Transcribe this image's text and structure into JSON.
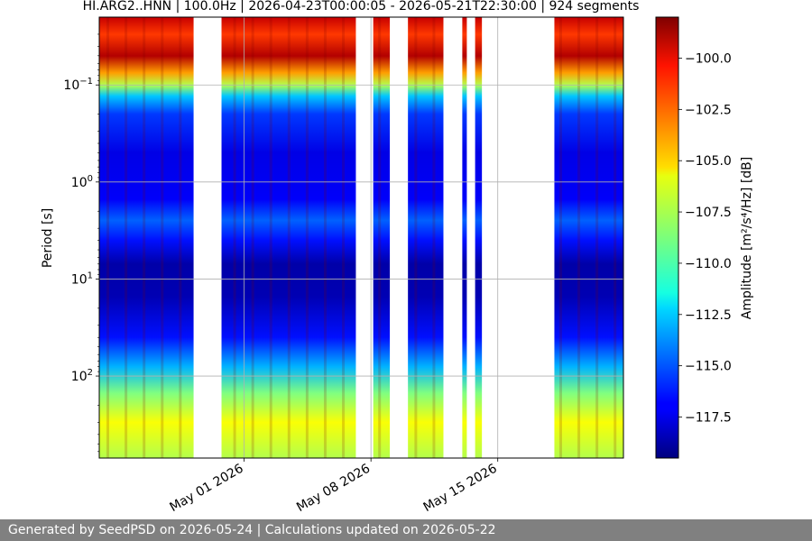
{
  "chart_data": {
    "type": "heatmap",
    "title": "HI.ARG2..HNN | 100.0Hz | 2026-04-23T00:00:05 - 2026-05-21T22:30:00 | 924 segments",
    "ylabel": "Period [s]",
    "y_scale": "log",
    "y_inverted": true,
    "y_range": [
      0.02,
      700
    ],
    "y_ticks": [
      {
        "value": 0.1,
        "base": "10",
        "exp": "−1"
      },
      {
        "value": 1,
        "base": "10",
        "exp": "0"
      },
      {
        "value": 10,
        "base": "10",
        "exp": "1"
      },
      {
        "value": 100,
        "base": "10",
        "exp": "2"
      }
    ],
    "x_range": [
      "2026-04-23T00:00:05",
      "2026-05-21T22:30:00"
    ],
    "x_ticks": [
      {
        "date": "2026-05-01",
        "label": "May 01 2026"
      },
      {
        "date": "2026-05-08",
        "label": "May 08 2026"
      },
      {
        "date": "2026-05-15",
        "label": "May 15 2026"
      }
    ],
    "grid": true,
    "data_gaps": [
      [
        "2026-04-28T05:00:00",
        "2026-04-29T18:00:00"
      ],
      [
        "2026-05-07T04:00:00",
        "2026-05-08T03:00:00"
      ],
      [
        "2026-05-09T01:00:00",
        "2026-05-10T01:00:00"
      ],
      [
        "2026-05-12T00:00:00",
        "2026-05-13T01:00:00"
      ],
      [
        "2026-05-13T07:00:00",
        "2026-05-13T18:00:00"
      ],
      [
        "2026-05-14T03:00:00",
        "2026-05-18T03:00:00"
      ]
    ],
    "colorbar": {
      "label": "Amplitude [m²/s⁴/Hz] [dB]",
      "range": [
        -119.5,
        -98
      ],
      "ticks": [
        -100.0,
        -102.5,
        -105.0,
        -107.5,
        -110.0,
        -112.5,
        -115.0,
        -117.5
      ],
      "tick_labels": [
        "−100.0",
        "−102.5",
        "−105.0",
        "−107.5",
        "−110.0",
        "−112.5",
        "−115.0",
        "−117.5"
      ],
      "colormap": "jet"
    }
  },
  "footer": "Generated by SeedPSD on 2026-05-24 | Calculations updated on 2026-05-22"
}
